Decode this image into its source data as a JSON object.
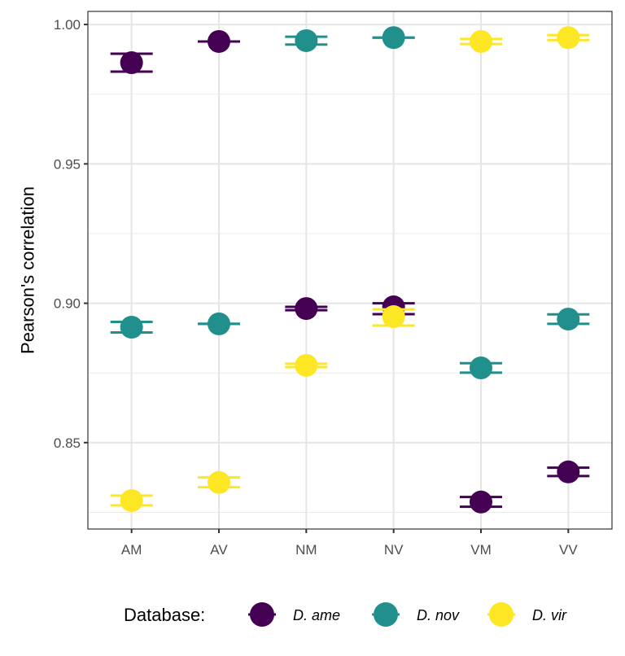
{
  "chart_data": {
    "type": "scatter",
    "title": "",
    "xlabel": "",
    "ylabel": "Pearson's correlation",
    "categories": [
      "AM",
      "AV",
      "NM",
      "NV",
      "VM",
      "VV"
    ],
    "ylim": [
      0.819,
      1.0047
    ],
    "yticks": [
      0.85,
      0.9,
      0.95,
      1.0
    ],
    "ytick_labels": [
      "0.85",
      "0.90",
      "0.95",
      "1.00"
    ],
    "yminor": [
      0.825,
      0.875,
      0.925,
      0.975
    ],
    "grid": true,
    "legend": {
      "title": "Database:",
      "position": "bottom",
      "entries": [
        "D. ame",
        "D. nov",
        "D. vir"
      ]
    },
    "series": [
      {
        "name": "D. ame",
        "color": "#440154",
        "values": [
          0.9863,
          0.9939,
          0.8981,
          0.8987,
          0.8287,
          0.8395
        ],
        "err_low": [
          0.9831,
          0.9939,
          0.8975,
          0.8961,
          0.827,
          0.838
        ],
        "err_high": [
          0.9895,
          0.9939,
          0.8987,
          0.9,
          0.8305,
          0.841
        ]
      },
      {
        "name": "D. nov",
        "color": "#21908C",
        "values": [
          0.8914,
          0.8926,
          0.9942,
          0.9953,
          0.8768,
          0.8943
        ],
        "err_low": [
          0.8895,
          0.8926,
          0.9928,
          0.9953,
          0.8751,
          0.8926
        ],
        "err_high": [
          0.8933,
          0.8926,
          0.9956,
          0.9953,
          0.8785,
          0.896
        ]
      },
      {
        "name": "D. vir",
        "color": "#FDE725",
        "values": [
          0.8292,
          0.8357,
          0.8777,
          0.8952,
          0.9939,
          0.9953
        ],
        "err_low": [
          0.8275,
          0.834,
          0.8771,
          0.892,
          0.993,
          0.9944
        ],
        "err_high": [
          0.831,
          0.8375,
          0.8783,
          0.8978,
          0.9948,
          0.9962
        ]
      }
    ]
  }
}
